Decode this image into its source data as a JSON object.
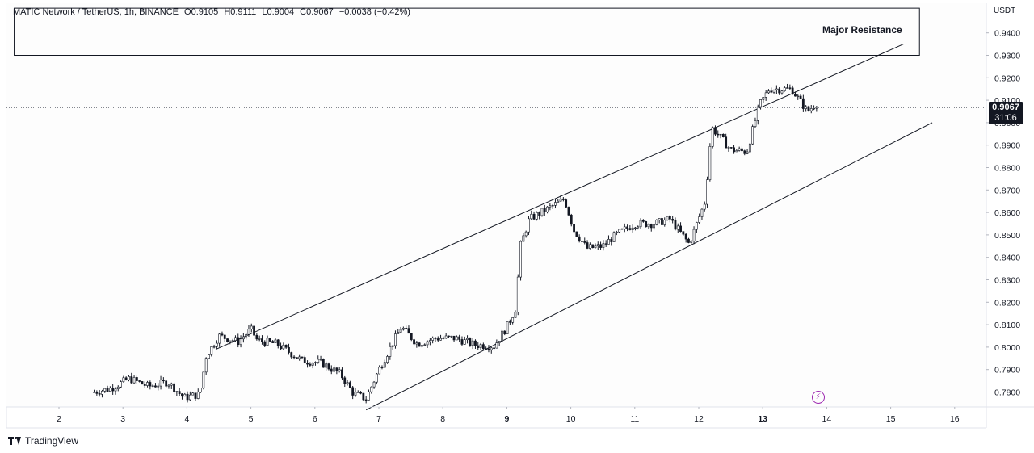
{
  "legend": {
    "symbol": "MATIC Network / TetherUS, 1h, BINANCE",
    "open": "O0.9105",
    "high": "H0.9111",
    "low": "L0.9004",
    "close": "C0.9067",
    "change": "−0.0038 (−0.42%)"
  },
  "price_axis": {
    "currency": "USDT",
    "last_price": "0.9067",
    "countdown": "31:06"
  },
  "annotation": "Major Resistance",
  "brand": "TradingView",
  "icons": {
    "logo": "tradingview-logo-icon",
    "flash": "lightning-icon"
  },
  "colors": {
    "up": "#131722",
    "down": "#131722",
    "line": "#131722",
    "flash": "#9c27b0"
  },
  "chart_data": {
    "type": "candlestick",
    "ylim": [
      0.77,
      0.953
    ],
    "xlim": [
      1.3,
      15.9
    ],
    "y_ticks": [
      0.94,
      0.93,
      0.92,
      0.91,
      0.9,
      0.89,
      0.88,
      0.87,
      0.86,
      0.85,
      0.84,
      0.83,
      0.82,
      0.81,
      0.8,
      0.79,
      0.78
    ],
    "x_ticks": [
      "2",
      "3",
      "4",
      "5",
      "6",
      "7",
      "8",
      "9",
      "10",
      "11",
      "12",
      "13",
      "14",
      "15",
      "16"
    ],
    "x_tick_values": [
      2,
      3,
      4,
      5,
      6,
      7,
      8,
      9,
      10,
      11,
      12,
      13,
      14,
      15,
      16
    ],
    "bold_ticks": [
      "9",
      "13"
    ],
    "last_price": 0.9067,
    "resistance_zone": {
      "x": [
        1.3,
        15.45
      ],
      "y": [
        0.93,
        0.951
      ]
    },
    "channel_upper": {
      "x": [
        4.45,
        15.2
      ],
      "y": [
        0.799,
        0.935
      ]
    },
    "channel_lower": {
      "x": [
        6.8,
        15.65
      ],
      "y": [
        0.772,
        0.9
      ]
    },
    "path": [
      [
        2.55,
        0.78
      ],
      [
        2.8,
        0.7815
      ],
      [
        3.1,
        0.786
      ],
      [
        3.4,
        0.7825
      ],
      [
        3.7,
        0.7845
      ],
      [
        3.95,
        0.7775
      ],
      [
        4.2,
        0.779
      ],
      [
        4.3,
        0.796
      ],
      [
        4.5,
        0.805
      ],
      [
        4.8,
        0.8025
      ],
      [
        5.0,
        0.808
      ],
      [
        5.1,
        0.803
      ],
      [
        5.4,
        0.8015
      ],
      [
        5.8,
        0.794
      ],
      [
        6.1,
        0.793
      ],
      [
        6.4,
        0.788
      ],
      [
        6.6,
        0.7795
      ],
      [
        6.8,
        0.777
      ],
      [
        7.0,
        0.79
      ],
      [
        7.2,
        0.801
      ],
      [
        7.35,
        0.809
      ],
      [
        7.6,
        0.8015
      ],
      [
        7.9,
        0.804
      ],
      [
        8.2,
        0.804
      ],
      [
        8.5,
        0.801
      ],
      [
        8.8,
        0.8005
      ],
      [
        9.0,
        0.809
      ],
      [
        9.15,
        0.818
      ],
      [
        9.2,
        0.844
      ],
      [
        9.35,
        0.857
      ],
      [
        9.6,
        0.861
      ],
      [
        9.9,
        0.866
      ],
      [
        10.05,
        0.852
      ],
      [
        10.25,
        0.844
      ],
      [
        10.5,
        0.845
      ],
      [
        10.7,
        0.85
      ],
      [
        11.0,
        0.855
      ],
      [
        11.3,
        0.855
      ],
      [
        11.55,
        0.857
      ],
      [
        11.85,
        0.846
      ],
      [
        12.1,
        0.865
      ],
      [
        12.2,
        0.898
      ],
      [
        12.5,
        0.888
      ],
      [
        12.75,
        0.887
      ],
      [
        12.95,
        0.908
      ],
      [
        13.1,
        0.915
      ],
      [
        13.45,
        0.915
      ],
      [
        13.7,
        0.905
      ],
      [
        13.85,
        0.909
      ]
    ]
  }
}
